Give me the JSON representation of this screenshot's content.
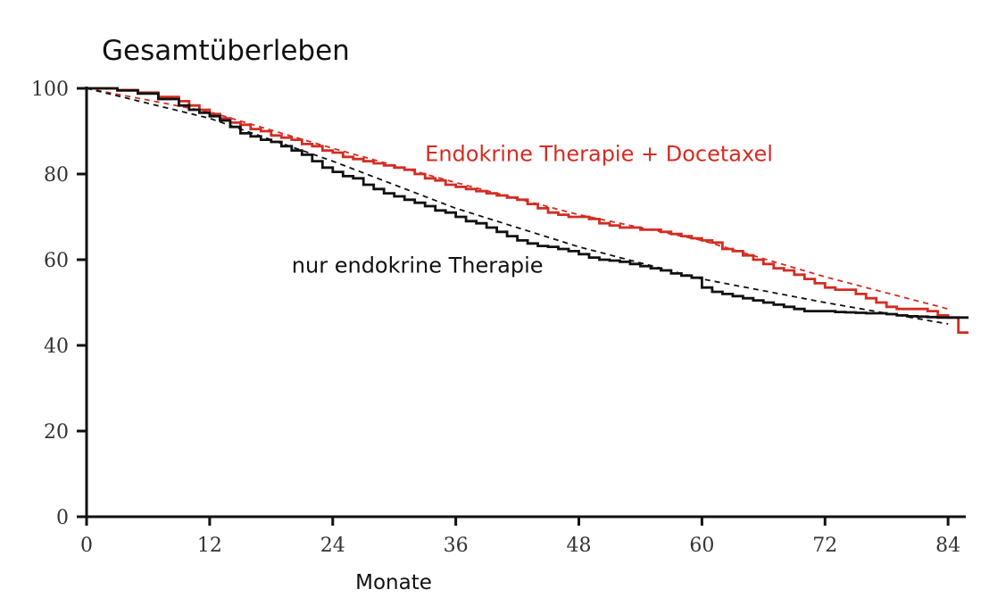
{
  "chart_data": {
    "type": "line",
    "title": "Gesamtüberleben",
    "xlabel": "Monate",
    "ylabel": "",
    "xlim": [
      0,
      86
    ],
    "ylim": [
      0,
      100
    ],
    "xticks": [
      0,
      12,
      24,
      36,
      48,
      60,
      72,
      84
    ],
    "yticks": [
      0,
      20,
      40,
      60,
      80,
      100
    ],
    "grid": false,
    "legend": "inline labels",
    "series": [
      {
        "name": "Endokrine Therapie + Docetaxel",
        "color": "#d42c22",
        "style": "step",
        "x": [
          0,
          3,
          5,
          7,
          9,
          10,
          11,
          12,
          13,
          14,
          15,
          16,
          17,
          18,
          19,
          20,
          21,
          22,
          23,
          24,
          25,
          26,
          27,
          28,
          29,
          30,
          31,
          32,
          33,
          34,
          35,
          36,
          37,
          38,
          39,
          40,
          41,
          42,
          43,
          44,
          45,
          46,
          47,
          48,
          49,
          50,
          51,
          52,
          53,
          54,
          55,
          56,
          57,
          58,
          59,
          60,
          61,
          62,
          63,
          64,
          65,
          66,
          67,
          68,
          69,
          70,
          71,
          72,
          73,
          74,
          75,
          76,
          77,
          78,
          79,
          80,
          81,
          82,
          83,
          84,
          85,
          86
        ],
        "values": [
          100,
          99.6,
          99,
          98,
          97,
          96,
          95,
          94,
          93,
          92,
          91.5,
          90.5,
          90,
          89,
          88.5,
          88,
          87,
          86.5,
          85.5,
          85,
          84,
          83.5,
          83,
          82.5,
          82,
          81.5,
          81,
          80,
          79,
          78.5,
          77.5,
          77,
          76.5,
          76,
          75.5,
          75,
          74.5,
          74,
          73,
          72,
          71,
          70.5,
          70,
          70,
          69.5,
          68.5,
          68,
          67.5,
          67.5,
          67,
          67,
          66.5,
          66,
          65.5,
          65,
          64.5,
          64,
          62.5,
          62,
          61,
          60,
          59,
          58,
          57.5,
          56.5,
          55.5,
          54.5,
          53.5,
          53,
          53,
          52,
          51,
          50,
          49,
          48.5,
          48.5,
          48.5,
          48,
          47,
          46.5,
          43,
          43
        ]
      },
      {
        "name": "nur endokrine Therapie",
        "color": "#111111",
        "style": "step",
        "x": [
          0,
          3,
          5,
          7,
          9,
          10,
          11,
          12,
          13,
          14,
          15,
          16,
          17,
          18,
          19,
          20,
          21,
          22,
          23,
          24,
          25,
          26,
          27,
          28,
          29,
          30,
          31,
          32,
          33,
          34,
          35,
          36,
          37,
          38,
          39,
          40,
          41,
          42,
          43,
          44,
          45,
          46,
          47,
          48,
          49,
          50,
          51,
          52,
          53,
          54,
          55,
          56,
          57,
          58,
          59,
          60,
          61,
          62,
          63,
          64,
          65,
          66,
          67,
          68,
          69,
          70,
          71,
          72,
          73,
          74,
          75,
          76,
          77,
          78,
          79,
          80,
          81,
          82,
          83,
          84,
          85,
          86
        ],
        "values": [
          100,
          99.5,
          98.8,
          97.5,
          96,
          95,
          94.3,
          93.5,
          92.5,
          91,
          89.5,
          88.8,
          88,
          87.5,
          86.5,
          85.5,
          84.5,
          83,
          81.5,
          80.5,
          79.5,
          79,
          77.5,
          76.5,
          75.5,
          74.8,
          74,
          73.3,
          72.5,
          71.5,
          71,
          70,
          69,
          68.5,
          67.5,
          66.5,
          65.5,
          64.5,
          63.8,
          63.2,
          63,
          62.5,
          62,
          61.3,
          60.5,
          60,
          59.8,
          59.5,
          59,
          58.5,
          58,
          57.5,
          56.8,
          56.3,
          55.8,
          53.5,
          52.5,
          52,
          51.5,
          51,
          50.5,
          50,
          49.5,
          49,
          48.5,
          48,
          48,
          48,
          47.8,
          47.7,
          47.6,
          47.5,
          47.5,
          47.3,
          47,
          46.8,
          46.7,
          46.6,
          46.5,
          46.5,
          46.5,
          46.5
        ]
      }
    ],
    "trend_lines": [
      {
        "series": "Endokrine Therapie + Docetaxel",
        "color": "#d42c22",
        "dash": true,
        "x": [
          0,
          12,
          24,
          36,
          48,
          60,
          72,
          84
        ],
        "values": [
          100,
          94.5,
          86,
          78,
          70.5,
          64.5,
          56,
          48.5
        ]
      },
      {
        "series": "nur endokrine Therapie",
        "color": "#111111",
        "dash": true,
        "x": [
          0,
          12,
          24,
          36,
          48,
          60,
          72,
          84
        ],
        "values": [
          100,
          93,
          83,
          72,
          63,
          55.5,
          50,
          45
        ]
      }
    ],
    "annotations": [
      {
        "text": "Endokrine Therapie + Docetaxel",
        "color": "#d42c22",
        "x": 33,
        "y": 83
      },
      {
        "text": "nur endokrine Therapie",
        "color": "#111111",
        "x": 20,
        "y": 57
      }
    ]
  }
}
